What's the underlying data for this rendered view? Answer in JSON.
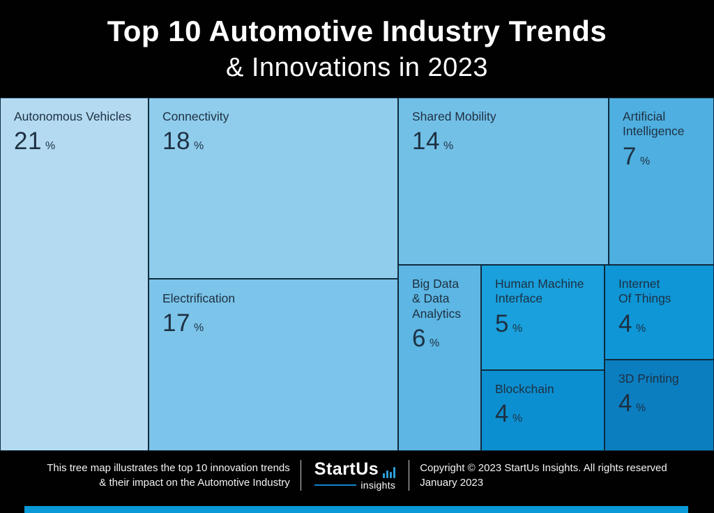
{
  "header": {
    "title_line1": "Top 10 Automotive Industry Trends",
    "title_line2": "& Innovations in 2023"
  },
  "chart_data": {
    "type": "treemap",
    "title": "Top 10 Automotive Industry Trends & Innovations in 2023",
    "value_unit": "%",
    "percent_sign": "%",
    "items": [
      {
        "name": "Autonomous Vehicles",
        "display_label": "Autonomous Vehicles",
        "value": "21",
        "color": "#b3daf1"
      },
      {
        "name": "Connectivity",
        "display_label": "Connectivity",
        "value": "18",
        "color": "#90cdec"
      },
      {
        "name": "Electrification",
        "display_label": "Electrification",
        "value": "17",
        "color": "#7cc4e9"
      },
      {
        "name": "Shared Mobility",
        "display_label": "Shared Mobility",
        "value": "14",
        "color": "#73c0e7"
      },
      {
        "name": "Artificial Intelligence",
        "display_label": "Artificial\nIntelligence",
        "value": "7",
        "color": "#4fafe0"
      },
      {
        "name": "Big Data & Data Analytics",
        "display_label": "Big Data\n& Data\nAnalytics",
        "value": "6",
        "color": "#5db6e3"
      },
      {
        "name": "Human Machine Interface",
        "display_label": "Human Machine\nInterface",
        "value": "5",
        "color": "#1aa0dc"
      },
      {
        "name": "Internet Of Things",
        "display_label": "Internet\nOf Things",
        "value": "4",
        "color": "#0e96d6"
      },
      {
        "name": "Blockchain",
        "display_label": "Blockchain",
        "value": "4",
        "color": "#0c8fd0"
      },
      {
        "name": "3D Printing",
        "display_label": "3D Printing",
        "value": "4",
        "color": "#0b7ec0"
      }
    ]
  },
  "footer": {
    "note": "This tree map illustrates the top 10 innovation trends\n& their impact on the Automotive Industry",
    "logo": {
      "wordmark": "StartUs",
      "sub": "insights"
    },
    "copyright": "Copyright © 2023 StartUs Insights. All rights reserved\nJanuary 2023"
  },
  "colors": {
    "accent_bar": "#0a9ad8",
    "logo_underline": "#1386cb",
    "logo_bars": "#2d9fd9",
    "cell_text": "#1d3042"
  }
}
